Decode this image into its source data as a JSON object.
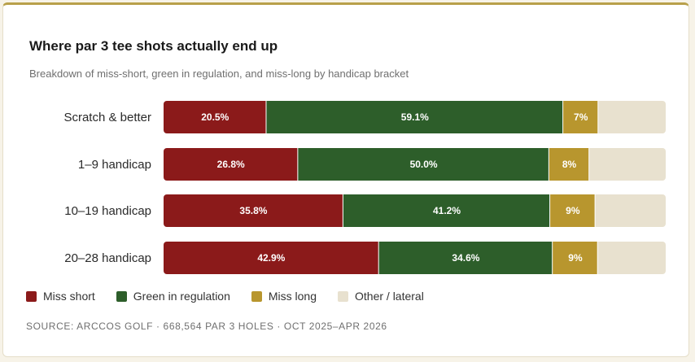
{
  "chart_data": {
    "type": "bar",
    "orientation": "horizontal",
    "stacked": true,
    "title": "Where par 3 tee shots actually end up",
    "subtitle": "Breakdown of miss-short, green in regulation, and miss-long by handicap bracket",
    "categories": [
      "Scratch & better",
      "1–9 handicap",
      "10–19 handicap",
      "20–28 handicap"
    ],
    "series": [
      {
        "name": "Miss short",
        "color": "#8b1a1a",
        "values": [
          20.5,
          26.8,
          35.8,
          42.9
        ],
        "labels": [
          "20.5%",
          "26.8%",
          "35.8%",
          "42.9%"
        ]
      },
      {
        "name": "Green in regulation",
        "color": "#2d5e2a",
        "values": [
          59.1,
          50.0,
          41.2,
          34.6
        ],
        "labels": [
          "59.1%",
          "50.0%",
          "41.2%",
          "34.6%"
        ]
      },
      {
        "name": "Miss long",
        "color": "#b8962e",
        "values": [
          7,
          8,
          9,
          9
        ],
        "labels": [
          "7%",
          "8%",
          "9%",
          "9%"
        ]
      },
      {
        "name": "Other / lateral",
        "color": "#e8e1cf",
        "values": [
          13.4,
          15.2,
          14.0,
          13.5
        ],
        "labels": [
          "",
          "",
          "",
          ""
        ]
      }
    ],
    "xlim": [
      0,
      100
    ],
    "legend": "bottom-left",
    "grid": false
  },
  "source": "SOURCE: ARCCOS GOLF · 668,564 PAR 3 HOLES · OCT 2025–APR 2026"
}
